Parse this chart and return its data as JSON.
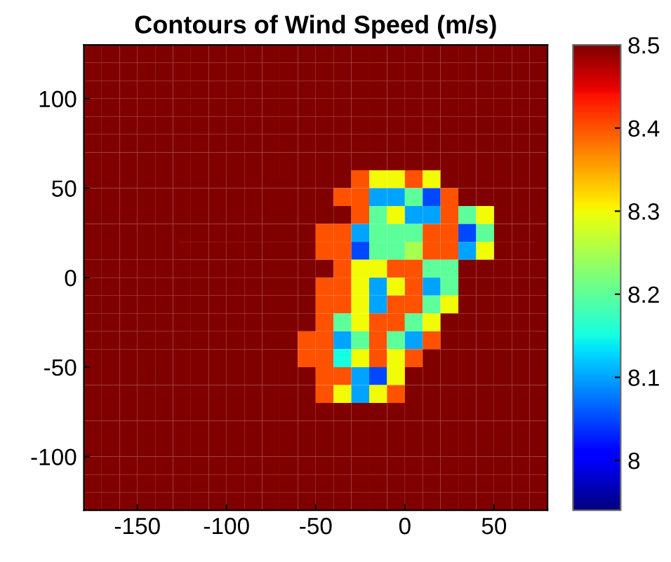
{
  "chart_data": {
    "type": "heatmap",
    "title": "Contours of Wind Speed (m/s)",
    "xlim": [
      -180,
      80
    ],
    "ylim": [
      -130,
      130
    ],
    "xticks": [
      -150,
      -100,
      -50,
      0,
      50
    ],
    "yticks": [
      -100,
      -50,
      0,
      50,
      100
    ],
    "clim": [
      7.94,
      8.5
    ],
    "cticks": [
      8,
      8.1,
      8.2,
      8.3,
      8.4,
      8.5
    ],
    "grid": false,
    "cells": [
      [
        8.5,
        8.5,
        8.5,
        8.5,
        8.5,
        8.5,
        8.5,
        8.5,
        8.5,
        8.5,
        8.5,
        8.5,
        8.5,
        8.5,
        8.5,
        8.5,
        8.5,
        8.5,
        8.5,
        8.5,
        8.5,
        8.5,
        8.5,
        8.5,
        8.5,
        8.5
      ],
      [
        8.5,
        8.5,
        8.5,
        8.5,
        8.5,
        8.5,
        8.5,
        8.5,
        8.5,
        8.5,
        8.5,
        8.5,
        8.5,
        8.5,
        8.5,
        8.5,
        8.5,
        8.5,
        8.5,
        8.5,
        8.5,
        8.5,
        8.5,
        8.5,
        8.5,
        8.5
      ],
      [
        8.5,
        8.5,
        8.5,
        8.5,
        8.5,
        8.5,
        8.5,
        8.5,
        8.5,
        8.5,
        8.5,
        8.5,
        8.5,
        8.5,
        8.5,
        8.5,
        8.5,
        8.5,
        8.5,
        8.5,
        8.5,
        8.5,
        8.5,
        8.5,
        8.5,
        8.5
      ],
      [
        8.5,
        8.5,
        8.5,
        8.5,
        8.5,
        8.5,
        8.5,
        8.5,
        8.5,
        8.5,
        8.5,
        8.5,
        8.5,
        8.5,
        8.5,
        8.5,
        8.5,
        8.5,
        8.5,
        8.5,
        8.5,
        8.5,
        8.5,
        8.5,
        8.5,
        8.5
      ],
      [
        8.5,
        8.5,
        8.5,
        8.5,
        8.5,
        8.5,
        8.5,
        8.5,
        8.5,
        8.5,
        8.5,
        8.5,
        8.5,
        8.5,
        8.5,
        8.5,
        8.5,
        8.5,
        8.5,
        8.5,
        8.5,
        8.5,
        8.5,
        8.5,
        8.5,
        8.5
      ],
      [
        8.5,
        8.5,
        8.5,
        8.5,
        8.5,
        8.5,
        8.5,
        8.5,
        8.5,
        8.5,
        8.5,
        8.5,
        8.5,
        8.5,
        8.5,
        8.5,
        8.5,
        8.5,
        8.5,
        8.5,
        8.5,
        8.5,
        8.5,
        8.5,
        8.5,
        8.5
      ],
      [
        8.5,
        8.5,
        8.5,
        8.5,
        8.5,
        8.5,
        8.5,
        8.5,
        8.5,
        8.5,
        8.5,
        8.5,
        8.5,
        8.5,
        8.5,
        8.5,
        8.5,
        8.5,
        8.5,
        8.5,
        8.5,
        8.5,
        8.5,
        8.5,
        8.5,
        8.5
      ],
      [
        8.5,
        8.5,
        8.5,
        8.5,
        8.5,
        8.5,
        8.5,
        8.5,
        8.5,
        8.5,
        8.5,
        8.5,
        8.5,
        8.5,
        8.5,
        8.4,
        8.3,
        8.3,
        8.4,
        8.3,
        8.5,
        8.5,
        8.5,
        8.5,
        8.5,
        8.5
      ],
      [
        8.5,
        8.5,
        8.5,
        8.5,
        8.5,
        8.5,
        8.5,
        8.5,
        8.5,
        8.5,
        8.5,
        8.5,
        8.5,
        8.5,
        8.4,
        8.4,
        8.1,
        8.1,
        8.2,
        8.05,
        8.4,
        8.5,
        8.5,
        8.5,
        8.5,
        8.5
      ],
      [
        8.5,
        8.5,
        8.5,
        8.5,
        8.5,
        8.5,
        8.5,
        8.5,
        8.5,
        8.5,
        8.5,
        8.5,
        8.5,
        8.5,
        8.5,
        8.4,
        8.2,
        8.3,
        8.1,
        8.1,
        8.4,
        8.2,
        8.3,
        8.5,
        8.5,
        8.5
      ],
      [
        8.5,
        8.5,
        8.5,
        8.5,
        8.5,
        8.5,
        8.5,
        8.5,
        8.5,
        8.5,
        8.5,
        8.5,
        8.5,
        8.4,
        8.4,
        8.1,
        8.2,
        8.2,
        8.2,
        8.4,
        8.4,
        8.05,
        8.2,
        8.5,
        8.5,
        8.5
      ],
      [
        8.5,
        8.5,
        8.5,
        8.5,
        8.5,
        8.5,
        8.5,
        8.5,
        8.5,
        8.5,
        8.5,
        8.5,
        8.5,
        8.4,
        8.4,
        8.05,
        8.2,
        8.2,
        8.25,
        8.4,
        8.4,
        8.1,
        8.3,
        8.5,
        8.5,
        8.5
      ],
      [
        8.5,
        8.5,
        8.5,
        8.5,
        8.5,
        8.5,
        8.5,
        8.5,
        8.5,
        8.5,
        8.5,
        8.5,
        8.5,
        8.5,
        8.4,
        8.3,
        8.3,
        8.4,
        8.4,
        8.2,
        8.2,
        8.5,
        8.5,
        8.5,
        8.5,
        8.5
      ],
      [
        8.5,
        8.5,
        8.5,
        8.5,
        8.5,
        8.5,
        8.5,
        8.5,
        8.5,
        8.5,
        8.5,
        8.5,
        8.5,
        8.4,
        8.4,
        8.3,
        8.1,
        8.3,
        8.4,
        8.1,
        8.2,
        8.5,
        8.5,
        8.5,
        8.5,
        8.5
      ],
      [
        8.5,
        8.5,
        8.5,
        8.5,
        8.5,
        8.5,
        8.5,
        8.5,
        8.5,
        8.5,
        8.5,
        8.5,
        8.5,
        8.4,
        8.4,
        8.3,
        8.1,
        8.4,
        8.4,
        8.2,
        8.3,
        8.5,
        8.5,
        8.5,
        8.5,
        8.5
      ],
      [
        8.5,
        8.5,
        8.5,
        8.5,
        8.5,
        8.5,
        8.5,
        8.5,
        8.5,
        8.5,
        8.5,
        8.5,
        8.5,
        8.4,
        8.2,
        8.3,
        8.4,
        8.4,
        8.2,
        8.3,
        8.5,
        8.5,
        8.5,
        8.5,
        8.5,
        8.5
      ],
      [
        8.5,
        8.5,
        8.5,
        8.5,
        8.5,
        8.5,
        8.5,
        8.5,
        8.5,
        8.5,
        8.5,
        8.5,
        8.4,
        8.4,
        8.1,
        8.2,
        8.4,
        8.2,
        8.1,
        8.4,
        8.5,
        8.5,
        8.5,
        8.5,
        8.5,
        8.5
      ],
      [
        8.5,
        8.5,
        8.5,
        8.5,
        8.5,
        8.5,
        8.5,
        8.5,
        8.5,
        8.5,
        8.5,
        8.5,
        8.4,
        8.4,
        8.15,
        8.3,
        8.4,
        8.3,
        8.4,
        8.5,
        8.5,
        8.5,
        8.5,
        8.5,
        8.5,
        8.5
      ],
      [
        8.5,
        8.5,
        8.5,
        8.5,
        8.5,
        8.5,
        8.5,
        8.5,
        8.5,
        8.5,
        8.5,
        8.5,
        8.5,
        8.4,
        8.4,
        8.1,
        8.05,
        8.3,
        8.5,
        8.5,
        8.5,
        8.5,
        8.5,
        8.5,
        8.5,
        8.5
      ],
      [
        8.5,
        8.5,
        8.5,
        8.5,
        8.5,
        8.5,
        8.5,
        8.5,
        8.5,
        8.5,
        8.5,
        8.5,
        8.5,
        8.4,
        8.3,
        8.1,
        8.3,
        8.4,
        8.5,
        8.5,
        8.5,
        8.5,
        8.5,
        8.5,
        8.5,
        8.5
      ],
      [
        8.5,
        8.5,
        8.5,
        8.5,
        8.5,
        8.5,
        8.5,
        8.5,
        8.5,
        8.5,
        8.5,
        8.5,
        8.5,
        8.5,
        8.5,
        8.5,
        8.5,
        8.5,
        8.5,
        8.5,
        8.5,
        8.5,
        8.5,
        8.5,
        8.5,
        8.5
      ],
      [
        8.5,
        8.5,
        8.5,
        8.5,
        8.5,
        8.5,
        8.5,
        8.5,
        8.5,
        8.5,
        8.5,
        8.5,
        8.5,
        8.5,
        8.5,
        8.5,
        8.5,
        8.5,
        8.5,
        8.5,
        8.5,
        8.5,
        8.5,
        8.5,
        8.5,
        8.5
      ],
      [
        8.5,
        8.5,
        8.5,
        8.5,
        8.5,
        8.5,
        8.5,
        8.5,
        8.5,
        8.5,
        8.5,
        8.5,
        8.5,
        8.5,
        8.5,
        8.5,
        8.5,
        8.5,
        8.5,
        8.5,
        8.5,
        8.5,
        8.5,
        8.5,
        8.5,
        8.5
      ],
      [
        8.5,
        8.5,
        8.5,
        8.5,
        8.5,
        8.5,
        8.5,
        8.5,
        8.5,
        8.5,
        8.5,
        8.5,
        8.5,
        8.5,
        8.5,
        8.5,
        8.5,
        8.5,
        8.5,
        8.5,
        8.5,
        8.5,
        8.5,
        8.5,
        8.5,
        8.5
      ],
      [
        8.5,
        8.5,
        8.5,
        8.5,
        8.5,
        8.5,
        8.5,
        8.5,
        8.5,
        8.5,
        8.5,
        8.5,
        8.5,
        8.5,
        8.5,
        8.5,
        8.5,
        8.5,
        8.5,
        8.5,
        8.5,
        8.5,
        8.5,
        8.5,
        8.5,
        8.5
      ],
      [
        8.5,
        8.5,
        8.5,
        8.5,
        8.5,
        8.5,
        8.5,
        8.5,
        8.5,
        8.5,
        8.5,
        8.5,
        8.5,
        8.5,
        8.5,
        8.5,
        8.5,
        8.5,
        8.5,
        8.5,
        8.5,
        8.5,
        8.5,
        8.5,
        8.5,
        8.5
      ]
    ]
  }
}
